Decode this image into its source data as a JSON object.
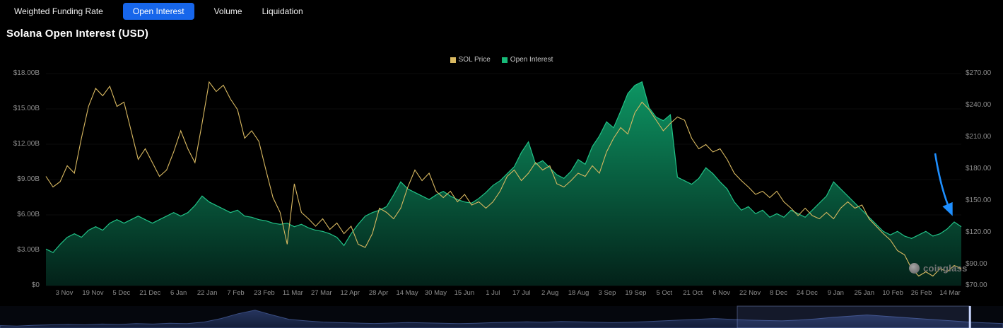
{
  "tabs": {
    "items": [
      {
        "label": "Weighted Funding Rate",
        "active": false
      },
      {
        "label": "Open Interest",
        "active": true
      },
      {
        "label": "Volume",
        "active": false
      },
      {
        "label": "Liquidation",
        "active": false
      }
    ],
    "active_color": "#1766EB"
  },
  "title": "Solana Open Interest (USD)",
  "legend": {
    "series": [
      {
        "label": "SOL Price",
        "color": "#D9B961"
      },
      {
        "label": "Open Interest",
        "color": "#17B978"
      }
    ]
  },
  "watermark": "coinglass",
  "colors": {
    "background": "#000000",
    "axis_text": "#8d8d8d",
    "price_line": "#D9B961",
    "oi_line": "#21C287",
    "oi_fill_top": "#0E9D68",
    "oi_fill_bottom": "#03231A",
    "annotation_arrow": "#1E8FFF",
    "navigator_fill": "#1B2747",
    "navigator_stroke": "#3A4D80"
  },
  "chart_data": {
    "type": "line",
    "title": "Solana Open Interest (USD)",
    "legend_position": "top-center",
    "grid": false,
    "x_tick_labels": [
      "3 Nov",
      "19 Nov",
      "5 Dec",
      "21 Dec",
      "6 Jan",
      "22 Jan",
      "7 Feb",
      "23 Feb",
      "11 Mar",
      "27 Mar",
      "12 Apr",
      "28 Apr",
      "14 May",
      "30 May",
      "15 Jun",
      "1 Jul",
      "17 Jul",
      "2 Aug",
      "18 Aug",
      "3 Sep",
      "19 Sep",
      "5 Oct",
      "21 Oct",
      "6 Nov",
      "22 Nov",
      "8 Dec",
      "24 Dec",
      "9 Jan",
      "25 Jan",
      "10 Feb",
      "26 Feb",
      "14 Mar"
    ],
    "left_axis": {
      "title": "Open Interest (USD)",
      "ticks": [
        "$18.00B",
        "$15.00B",
        "$12.00B",
        "$9.00B",
        "$6.00B",
        "$3.00B",
        "$0"
      ],
      "range_billions": [
        0,
        18
      ]
    },
    "right_axis": {
      "title": "SOL Price (USD)",
      "ticks": [
        {
          "label": "$270.00",
          "value": 270
        },
        {
          "label": "$240.00",
          "value": 240
        },
        {
          "label": "$210.00",
          "value": 210
        },
        {
          "label": "$180.00",
          "value": 180
        },
        {
          "label": "$150.00",
          "value": 150
        },
        {
          "label": "$120.00",
          "value": 120
        },
        {
          "label": "$90.00",
          "value": 90
        },
        {
          "label": "$70.00",
          "value": 70
        }
      ],
      "range": [
        70,
        270
      ]
    },
    "series": [
      {
        "name": "SOL Price",
        "axis": "right",
        "unit": "USD",
        "color": "#D9B961",
        "values": [
          173,
          163,
          168,
          183,
          176,
          209,
          239,
          256,
          249,
          258,
          239,
          243,
          216,
          189,
          199,
          186,
          173,
          179,
          196,
          216,
          199,
          186,
          223,
          262,
          253,
          259,
          246,
          236,
          209,
          216,
          206,
          179,
          153,
          139,
          109,
          166,
          139,
          133,
          126,
          133,
          123,
          129,
          119,
          126,
          109,
          106,
          119,
          143,
          139,
          133,
          143,
          163,
          179,
          169,
          176,
          159,
          153,
          159,
          149,
          156,
          146,
          149,
          143,
          149,
          159,
          173,
          179,
          169,
          176,
          186,
          179,
          183,
          166,
          163,
          169,
          176,
          173,
          183,
          176,
          196,
          209,
          219,
          213,
          233,
          243,
          236,
          226,
          216,
          223,
          229,
          226,
          209,
          199,
          203,
          196,
          199,
          189,
          176,
          169,
          163,
          156,
          159,
          153,
          159,
          149,
          143,
          136,
          143,
          136,
          133,
          139,
          133,
          143,
          149,
          143,
          146,
          133,
          126,
          119,
          113,
          103,
          99,
          86,
          79,
          83,
          79,
          86,
          83,
          89,
          86
        ]
      },
      {
        "name": "Open Interest",
        "axis": "left",
        "unit": "billions USD",
        "color": "#21C287",
        "values": [
          3.1,
          2.8,
          3.5,
          4.1,
          4.4,
          4.1,
          4.7,
          5.0,
          4.7,
          5.3,
          5.6,
          5.3,
          5.6,
          5.9,
          5.6,
          5.3,
          5.6,
          5.9,
          6.2,
          5.9,
          6.2,
          6.8,
          7.6,
          7.1,
          6.8,
          6.5,
          6.2,
          6.4,
          5.9,
          5.8,
          5.6,
          5.5,
          5.3,
          5.2,
          5.3,
          5.0,
          5.2,
          4.9,
          4.7,
          4.6,
          4.4,
          4.1,
          3.4,
          4.4,
          5.2,
          5.9,
          6.2,
          6.4,
          6.7,
          7.7,
          8.8,
          8.2,
          7.9,
          7.6,
          7.3,
          7.7,
          8.0,
          7.6,
          7.3,
          7.1,
          7.0,
          7.4,
          7.9,
          8.5,
          8.9,
          9.5,
          10.1,
          11.3,
          12.2,
          10.3,
          10.6,
          10.0,
          9.4,
          9.1,
          9.7,
          10.7,
          10.3,
          11.8,
          12.7,
          13.9,
          13.4,
          14.8,
          16.3,
          17.0,
          17.3,
          15.1,
          14.3,
          14.0,
          14.5,
          9.2,
          8.9,
          8.6,
          9.1,
          10.0,
          9.5,
          8.8,
          8.2,
          7.1,
          6.4,
          6.7,
          6.1,
          6.4,
          5.8,
          6.1,
          5.8,
          6.4,
          6.1,
          5.8,
          6.4,
          7.0,
          7.6,
          8.8,
          8.2,
          7.6,
          7.0,
          6.4,
          5.8,
          5.2,
          4.6,
          4.3,
          4.6,
          4.2,
          4.0,
          4.3,
          4.6,
          4.2,
          4.4,
          4.8,
          5.4,
          5.0
        ]
      }
    ],
    "annotation": {
      "type": "arrow",
      "color": "#1E8FFF",
      "points_to": "uptick at end of Open Interest series (14 Mar)"
    },
    "navigator": {
      "heights": [
        0.12,
        0.1,
        0.14,
        0.16,
        0.18,
        0.16,
        0.2,
        0.18,
        0.22,
        0.2,
        0.24,
        0.22,
        0.3,
        0.48,
        0.72,
        0.9,
        0.66,
        0.44,
        0.36,
        0.3,
        0.27,
        0.25,
        0.23,
        0.25,
        0.28,
        0.26,
        0.24,
        0.22,
        0.24,
        0.27,
        0.29,
        0.31,
        0.29,
        0.33,
        0.31,
        0.29,
        0.27,
        0.29,
        0.32,
        0.36,
        0.4,
        0.44,
        0.48,
        0.44,
        0.4,
        0.38,
        0.36,
        0.4,
        0.46,
        0.54,
        0.6,
        0.66,
        0.6,
        0.54,
        0.48,
        0.42,
        0.36,
        0.3,
        0.26,
        0.22
      ],
      "selection": [
        0.735,
        0.967
      ]
    }
  }
}
